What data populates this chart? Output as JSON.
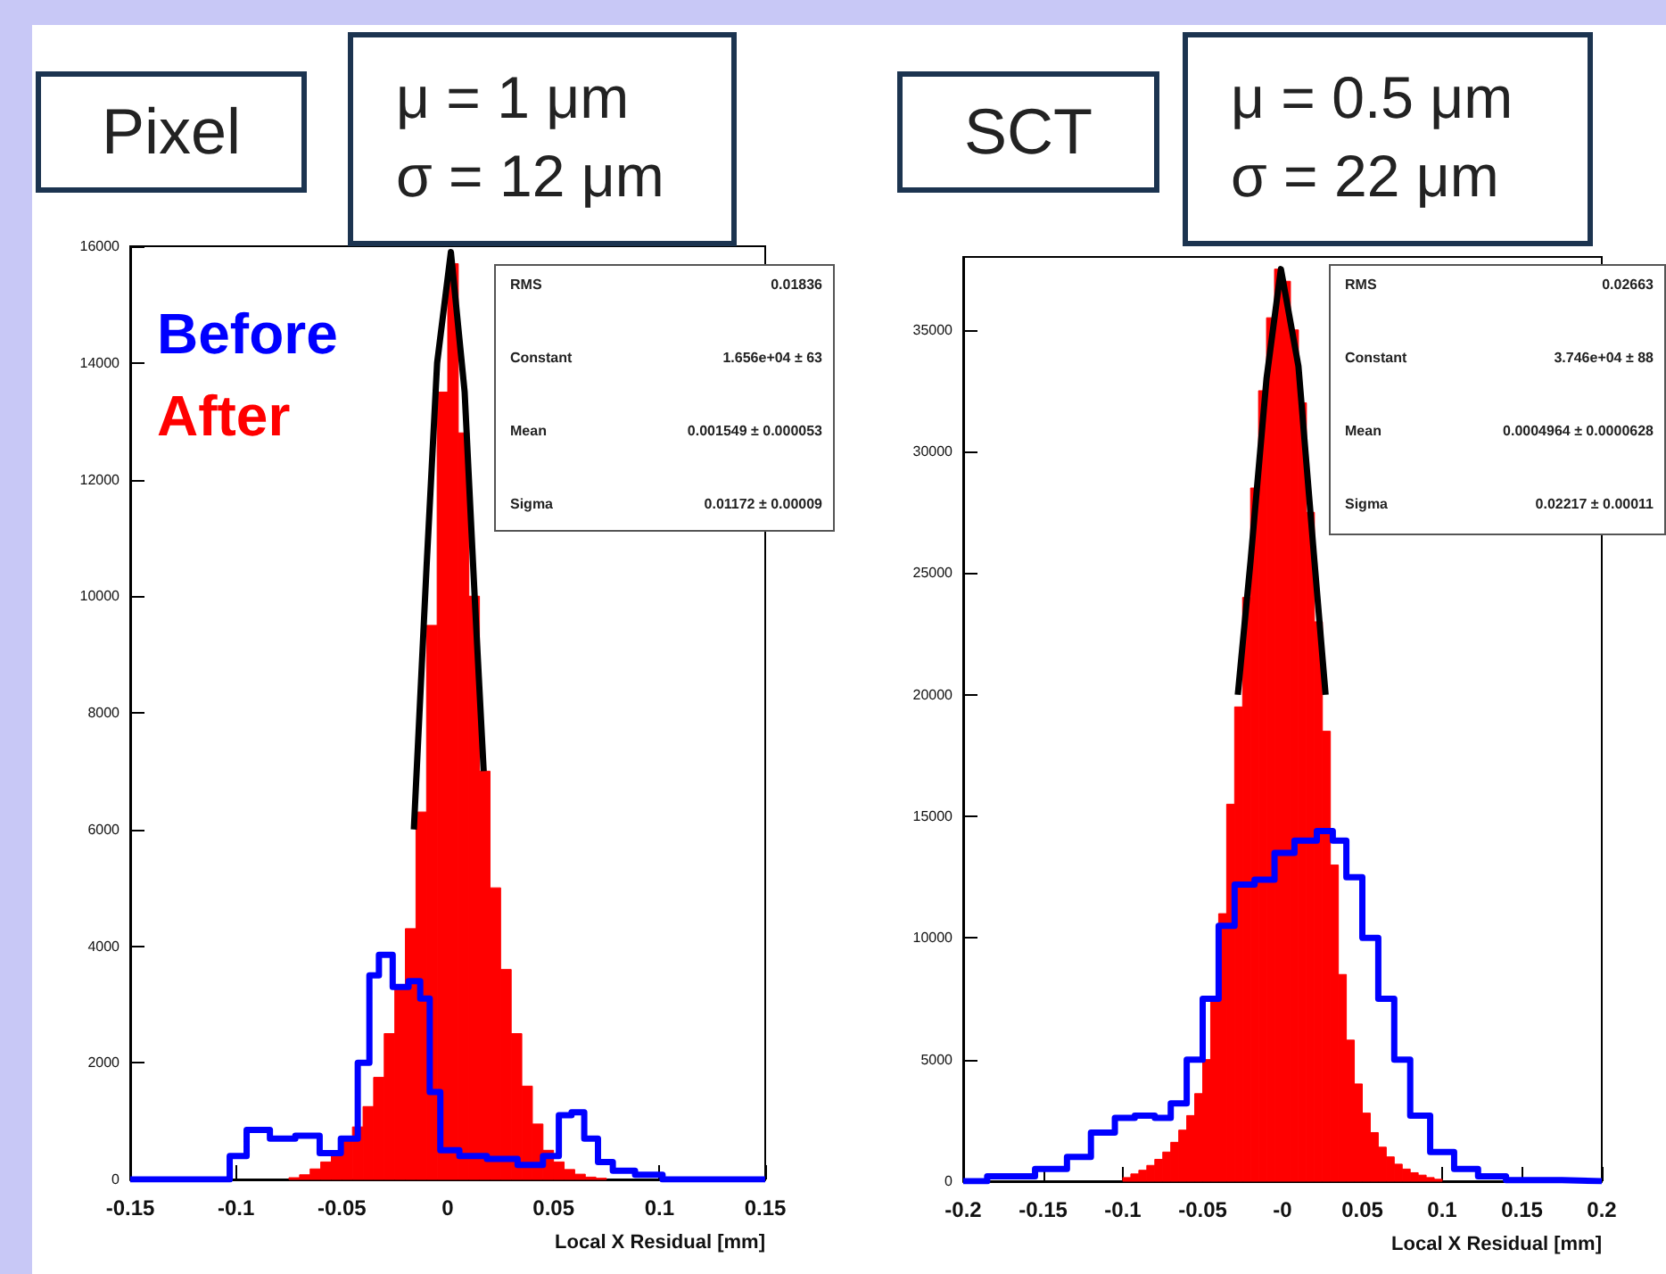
{
  "chart_data": [
    {
      "type": "histogram",
      "xlabel": "Local X Residual [mm]",
      "xlim": [
        -0.15,
        0.15
      ],
      "xticks": [
        -0.15,
        -0.1,
        -0.05,
        0,
        0.05,
        0.1,
        0.15
      ],
      "ylim": [
        0,
        16000
      ],
      "yticks": [
        0,
        2000,
        4000,
        6000,
        8000,
        10000,
        12000,
        14000,
        16000
      ],
      "legend": "top left",
      "annotations": [
        "Pixel",
        "μ = 1 μm",
        "σ = 12 μm",
        "RMS",
        "0.01836",
        "Constant",
        "1.656e+04 ± 63",
        "Mean",
        "0.001549 ± 0.000053",
        "Sigma",
        "0.01172 ± 0.00009"
      ],
      "series": [
        {
          "name": "Before",
          "type": "step",
          "color": "#0000ff",
          "x": [
            -0.15,
            -0.106,
            -0.1,
            -0.09,
            -0.078,
            -0.066,
            -0.055,
            -0.046,
            -0.039,
            -0.035,
            -0.03,
            -0.022,
            -0.015,
            -0.011,
            -0.006,
            -0.001,
            0.012,
            0.025,
            0.041,
            0.049,
            0.056,
            0.061,
            0.068,
            0.074,
            0.082,
            0.095,
            0.108,
            0.15
          ],
          "values": [
            0,
            0,
            400,
            850,
            700,
            750,
            450,
            700,
            2000,
            3500,
            3850,
            3300,
            3400,
            3100,
            1500,
            500,
            400,
            350,
            250,
            400,
            1100,
            1150,
            700,
            300,
            150,
            80,
            0,
            0
          ]
        },
        {
          "name": "After",
          "type": "histogram",
          "color": "#ff0000",
          "bins": [
            -0.075,
            -0.07,
            -0.065,
            -0.06,
            -0.055,
            -0.05,
            -0.045,
            -0.04,
            -0.035,
            -0.03,
            -0.025,
            -0.02,
            -0.015,
            -0.01,
            -0.005,
            0,
            0.005,
            0.01,
            0.015,
            0.02,
            0.025,
            0.03,
            0.035,
            0.04,
            0.045,
            0.05,
            0.055,
            0.06,
            0.065,
            0.07,
            0.075
          ],
          "values": [
            30,
            80,
            180,
            300,
            450,
            650,
            900,
            1250,
            1750,
            2500,
            3300,
            4300,
            6300,
            9500,
            13500,
            15700,
            12800,
            10000,
            7000,
            5000,
            3600,
            2500,
            1600,
            950,
            500,
            300,
            170,
            90,
            40,
            20
          ]
        },
        {
          "type": "line",
          "color": "#000000",
          "x": [
            -0.016,
            -0.01,
            -0.005,
            0.0015,
            0.008,
            0.013,
            0.017
          ],
          "values": [
            6000,
            10500,
            14000,
            15900,
            13500,
            9800,
            7000
          ]
        }
      ]
    },
    {
      "type": "histogram",
      "xlabel": "Local X Residual [mm]",
      "xlim": [
        -0.2,
        0.2
      ],
      "xticks": [
        -0.2,
        -0.15,
        -0.1,
        -0.05,
        {
          "value": 0,
          "label": "-0"
        },
        0.05,
        0.1,
        0.15,
        0.2
      ],
      "ylim": [
        0,
        38000
      ],
      "yticks": [
        0,
        5000,
        10000,
        15000,
        20000,
        25000,
        30000,
        35000
      ],
      "annotations": [
        "SCT",
        "μ = 0.5 μm",
        "σ = 22 μm",
        "RMS",
        "0.02663",
        "Constant",
        "3.746e+04 ± 88",
        "Mean",
        "0.0004964 ± 0.0000628",
        "Sigma",
        "0.02217 ± 0.00011"
      ],
      "series": [
        {
          "type": "step",
          "color": "#0000ff",
          "x": [
            -0.2,
            -0.17,
            -0.14,
            -0.13,
            -0.11,
            -0.1,
            -0.085,
            -0.075,
            -0.065,
            -0.055,
            -0.045,
            -0.035,
            -0.025,
            -0.01,
            0,
            0.015,
            0.028,
            0.035,
            0.045,
            0.055,
            0.065,
            0.075,
            0.085,
            0.1,
            0.115,
            0.13,
            0.15,
            0.2
          ],
          "values": [
            0,
            200,
            500,
            1000,
            2000,
            2600,
            2700,
            2600,
            3200,
            5000,
            7500,
            10500,
            12200,
            12400,
            13500,
            14000,
            14400,
            14000,
            12500,
            10000,
            7500,
            5000,
            2700,
            1200,
            500,
            200,
            50,
            0
          ]
        },
        {
          "type": "histogram",
          "color": "#ff0000",
          "bins": [
            -0.1,
            -0.095,
            -0.09,
            -0.085,
            -0.08,
            -0.075,
            -0.07,
            -0.065,
            -0.06,
            -0.055,
            -0.05,
            -0.045,
            -0.04,
            -0.035,
            -0.03,
            -0.025,
            -0.02,
            -0.015,
            -0.01,
            -0.005,
            0,
            0.005,
            0.01,
            0.015,
            0.02,
            0.025,
            0.03,
            0.035,
            0.04,
            0.045,
            0.05,
            0.055,
            0.06,
            0.065,
            0.07,
            0.075,
            0.08,
            0.085,
            0.09,
            0.095,
            0.1
          ],
          "values": [
            150,
            300,
            450,
            650,
            900,
            1200,
            1600,
            2100,
            2700,
            3600,
            5000,
            7500,
            11000,
            15500,
            19500,
            24000,
            28500,
            32500,
            35500,
            37500,
            37000,
            35000,
            32000,
            27500,
            23000,
            18500,
            13000,
            8500,
            5800,
            4000,
            2800,
            2000,
            1400,
            1000,
            700,
            500,
            350,
            250,
            150,
            80
          ]
        },
        {
          "type": "line",
          "color": "#000000",
          "x": [
            -0.028,
            -0.02,
            -0.01,
            -0.001,
            0.01,
            0.02,
            0.027
          ],
          "values": [
            20000,
            25500,
            33000,
            37500,
            33500,
            25500,
            20000
          ]
        }
      ]
    }
  ]
}
